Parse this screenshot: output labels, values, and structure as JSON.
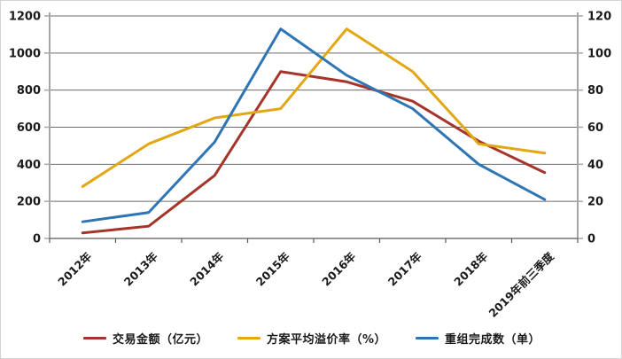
{
  "chart_data": {
    "type": "line",
    "title": "",
    "categories": [
      "2012年",
      "2013年",
      "2014年",
      "2015年",
      "2016年",
      "2017年",
      "2018年",
      "2019年前三季度"
    ],
    "series": [
      {
        "name": "交易金额（亿元）",
        "axis": "left",
        "color": "#A5352B",
        "values": [
          30,
          66,
          340,
          900,
          845,
          740,
          525,
          355
        ]
      },
      {
        "name": "方案平均溢价率（%）",
        "axis": "right",
        "color": "#E2A713",
        "values": [
          28,
          51,
          65,
          70,
          113,
          90,
          51,
          46
        ]
      },
      {
        "name": "重组完成数（单）",
        "axis": "right",
        "color": "#2E75B6",
        "values": [
          9,
          14,
          52,
          113,
          88,
          70,
          40,
          21
        ]
      }
    ],
    "left_axis": {
      "min": 0,
      "max": 1200,
      "step": 200,
      "ticks": [
        "0",
        "200",
        "400",
        "600",
        "800",
        "1000",
        "1200"
      ]
    },
    "right_axis": {
      "min": 0,
      "max": 120,
      "step": 20,
      "ticks": [
        "0",
        "20",
        "40",
        "60",
        "80",
        "100",
        "120"
      ]
    },
    "grid": true,
    "legend_position": "bottom",
    "colors": {
      "gridline": "#6b6b6b",
      "axis_line": "#a6a6a6",
      "bottom_axis": "#595959",
      "tick_label": "#1a1a1a",
      "background": "#ffffff"
    }
  }
}
